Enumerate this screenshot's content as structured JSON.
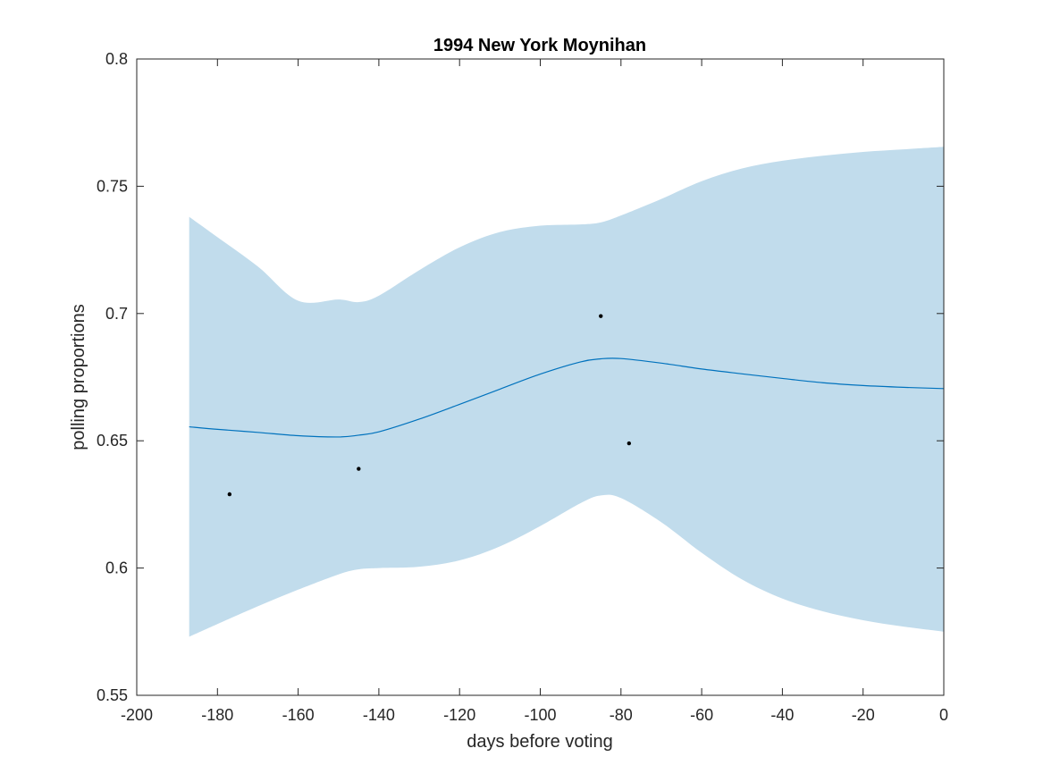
{
  "chart_data": {
    "type": "line",
    "title": "1994 New York Moynihan",
    "xlabel": "days before voting",
    "ylabel": "polling proportions",
    "xlim": [
      -200,
      0
    ],
    "ylim": [
      0.55,
      0.8
    ],
    "x_ticks": [
      -200,
      -180,
      -160,
      -140,
      -120,
      -100,
      -80,
      -60,
      -40,
      -20,
      0
    ],
    "y_ticks": [
      0.55,
      0.6,
      0.65,
      0.7,
      0.75,
      0.8
    ],
    "x_tick_labels": [
      "-200",
      "-180",
      "-160",
      "-140",
      "-120",
      "-100",
      "-80",
      "-60",
      "-40",
      "-20",
      "0"
    ],
    "y_tick_labels": [
      "0.55",
      "0.6",
      "0.65",
      "0.7",
      "0.75",
      "0.8"
    ],
    "grid": false,
    "colors": {
      "band": "#c1dcec",
      "line": "#0072bd",
      "points": "#000000",
      "axes": "#262626"
    },
    "mean_curve": {
      "x": [
        -187,
        -180,
        -170,
        -160,
        -150,
        -145,
        -140,
        -130,
        -120,
        -110,
        -100,
        -90,
        -85,
        -80,
        -70,
        -60,
        -50,
        -40,
        -30,
        -20,
        -10,
        0
      ],
      "y": [
        0.6555,
        0.6545,
        0.6533,
        0.652,
        0.6515,
        0.6522,
        0.6535,
        0.6585,
        0.6643,
        0.6703,
        0.6762,
        0.681,
        0.6822,
        0.6823,
        0.6805,
        0.6782,
        0.6763,
        0.6745,
        0.6728,
        0.6717,
        0.671,
        0.6705
      ]
    },
    "confidence_band": {
      "x": [
        -187,
        -180,
        -170,
        -160,
        -150,
        -145,
        -140,
        -130,
        -120,
        -110,
        -100,
        -90,
        -85,
        -80,
        -70,
        -60,
        -50,
        -40,
        -30,
        -20,
        -10,
        0
      ],
      "upper": [
        0.738,
        0.73,
        0.7185,
        0.705,
        0.7055,
        0.7045,
        0.707,
        0.717,
        0.726,
        0.732,
        0.7345,
        0.735,
        0.7358,
        0.7385,
        0.745,
        0.752,
        0.757,
        0.76,
        0.762,
        0.7635,
        0.7645,
        0.7655
      ],
      "lower": [
        0.573,
        0.578,
        0.585,
        0.5915,
        0.5975,
        0.5995,
        0.6,
        0.6005,
        0.603,
        0.6085,
        0.6165,
        0.6255,
        0.6285,
        0.6275,
        0.618,
        0.606,
        0.5955,
        0.588,
        0.583,
        0.5795,
        0.577,
        0.575
      ]
    },
    "polls": [
      {
        "x": -177,
        "y": 0.629
      },
      {
        "x": -145,
        "y": 0.639
      },
      {
        "x": -85,
        "y": 0.699
      },
      {
        "x": -78,
        "y": 0.649
      }
    ]
  }
}
